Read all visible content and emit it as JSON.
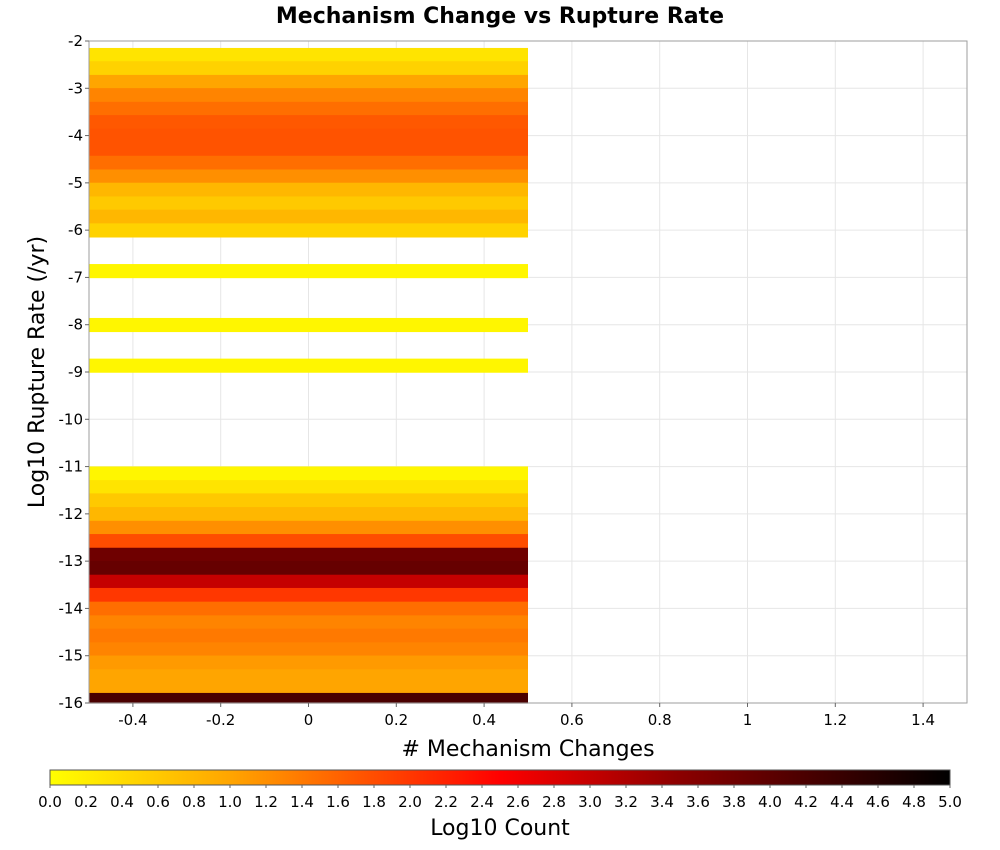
{
  "chart_data": {
    "type": "heatmap",
    "title": "Mechanism Change vs Rupture Rate",
    "xlabel": "# Mechanism Changes",
    "ylabel": "Log10 Rupture Rate (/yr)",
    "xlim": [
      -0.5,
      1.5
    ],
    "ylim": [
      -16,
      -2
    ],
    "x_ticks": [
      "-0.4",
      "-0.2",
      "0",
      "0.2",
      "0.4",
      "0.6",
      "0.8",
      "1",
      "1.2",
      "1.4"
    ],
    "x_tick_values": [
      -0.4,
      -0.2,
      0,
      0.2,
      0.4,
      0.6,
      0.8,
      1.0,
      1.2,
      1.4
    ],
    "y_ticks": [
      "-2",
      "-3",
      "-4",
      "-5",
      "-6",
      "-7",
      "-8",
      "-9",
      "-10",
      "-11",
      "-12",
      "-13",
      "-14",
      "-15",
      "-16"
    ],
    "y_tick_values": [
      -2,
      -3,
      -4,
      -5,
      -6,
      -7,
      -8,
      -9,
      -10,
      -11,
      -12,
      -13,
      -14,
      -15,
      -16
    ],
    "grid": true,
    "cells": {
      "x_range": [
        -0.5,
        0.5
      ],
      "bin_height": 0.286,
      "bins": [
        {
          "y": -2.29,
          "value": 0.3
        },
        {
          "y": -2.57,
          "value": 0.5
        },
        {
          "y": -2.86,
          "value": 1.0
        },
        {
          "y": -3.14,
          "value": 1.3
        },
        {
          "y": -3.43,
          "value": 1.5
        },
        {
          "y": -3.71,
          "value": 1.7
        },
        {
          "y": -4.0,
          "value": 1.75
        },
        {
          "y": -4.29,
          "value": 1.75
        },
        {
          "y": -4.57,
          "value": 1.5
        },
        {
          "y": -4.86,
          "value": 1.2
        },
        {
          "y": -5.14,
          "value": 0.8
        },
        {
          "y": -5.43,
          "value": 0.6
        },
        {
          "y": -5.71,
          "value": 0.8
        },
        {
          "y": -6.0,
          "value": 0.5
        },
        {
          "y": -6.86,
          "value": 0.1
        },
        {
          "y": -8.0,
          "value": 0.1
        },
        {
          "y": -8.86,
          "value": 0.1
        },
        {
          "y": -11.14,
          "value": 0.1
        },
        {
          "y": -11.43,
          "value": 0.3
        },
        {
          "y": -11.71,
          "value": 0.6
        },
        {
          "y": -12.0,
          "value": 0.8
        },
        {
          "y": -12.29,
          "value": 1.2
        },
        {
          "y": -12.57,
          "value": 1.8
        },
        {
          "y": -12.86,
          "value": 3.8
        },
        {
          "y": -13.14,
          "value": 3.9
        },
        {
          "y": -13.43,
          "value": 3.0
        },
        {
          "y": -13.71,
          "value": 2.0
        },
        {
          "y": -14.0,
          "value": 1.5
        },
        {
          "y": -14.29,
          "value": 1.3
        },
        {
          "y": -14.57,
          "value": 1.4
        },
        {
          "y": -14.86,
          "value": 1.3
        },
        {
          "y": -15.14,
          "value": 1.1
        },
        {
          "y": -15.43,
          "value": 1.0
        },
        {
          "y": -15.71,
          "value": 1.0
        },
        {
          "y": -15.93,
          "value": 4.2
        }
      ]
    },
    "colorbar": {
      "label": "Log10 Count",
      "range": [
        0.0,
        5.0
      ],
      "ticks": [
        "0.0",
        "0.2",
        "0.4",
        "0.6",
        "0.8",
        "1.0",
        "1.2",
        "1.4",
        "1.6",
        "1.8",
        "2.0",
        "2.2",
        "2.4",
        "2.6",
        "2.8",
        "3.0",
        "3.2",
        "3.4",
        "3.6",
        "3.8",
        "4.0",
        "4.2",
        "4.4",
        "4.6",
        "4.8",
        "5.0"
      ],
      "tick_values": [
        0.0,
        0.2,
        0.4,
        0.6,
        0.8,
        1.0,
        1.2,
        1.4,
        1.6,
        1.8,
        2.0,
        2.2,
        2.4,
        2.6,
        2.8,
        3.0,
        3.2,
        3.4,
        3.6,
        3.8,
        4.0,
        4.2,
        4.4,
        4.6,
        4.8,
        5.0
      ],
      "stops": [
        {
          "v": 0.0,
          "color": "#ffff00"
        },
        {
          "v": 1.0,
          "color": "#ffa500"
        },
        {
          "v": 2.5,
          "color": "#ff0000"
        },
        {
          "v": 3.5,
          "color": "#8b0000"
        },
        {
          "v": 5.0,
          "color": "#000000"
        }
      ]
    }
  }
}
